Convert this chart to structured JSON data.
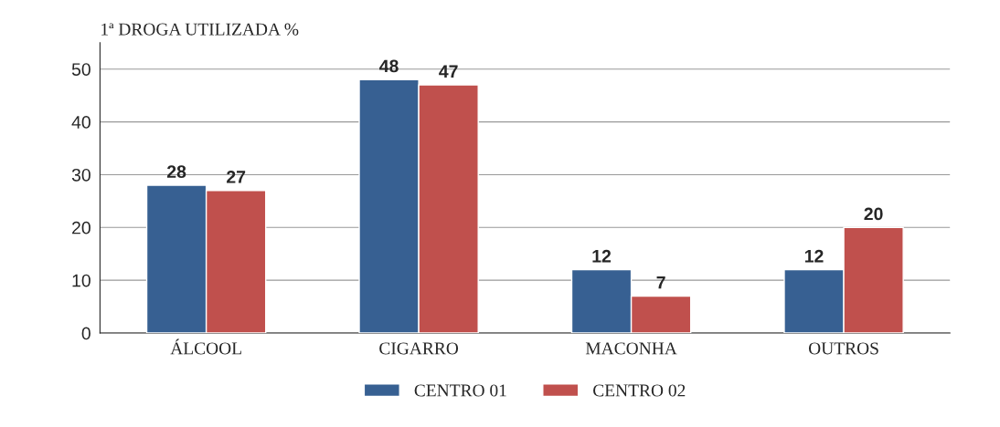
{
  "chart_data": {
    "type": "bar",
    "title": "1ª DROGA UTILIZADA %",
    "categories": [
      "ÁLCOOL",
      "CIGARRO",
      "MACONHA",
      "OUTROS"
    ],
    "series": [
      {
        "name": "CENTRO 01",
        "color": "#376092",
        "values": [
          28,
          48,
          12,
          12
        ]
      },
      {
        "name": "CENTRO 02",
        "color": "#c0504d",
        "values": [
          27,
          47,
          7,
          20
        ]
      }
    ],
    "ylim": [
      0,
      55
    ],
    "yticks": [
      0,
      10,
      20,
      30,
      40,
      50
    ],
    "grid": "y",
    "legend": "bottom",
    "data_labels": true
  }
}
